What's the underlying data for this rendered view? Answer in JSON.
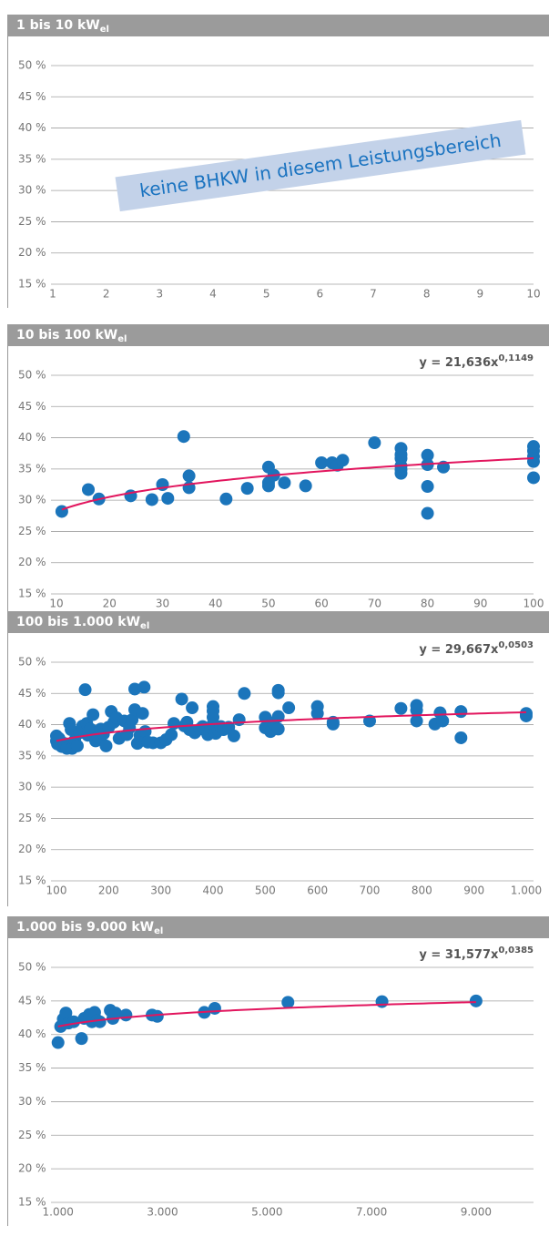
{
  "chart_data": [
    {
      "type": "scatter",
      "title": "1 bis 10 kW",
      "title_sub": "el",
      "annotation": "keine BHKW in diesem Leistungsbereich",
      "xlim": [
        1,
        10
      ],
      "xticks": [
        1,
        2,
        3,
        4,
        5,
        6,
        7,
        8,
        9,
        10
      ],
      "ylim": [
        15,
        50
      ],
      "yticks": [
        {
          "value": 15,
          "label": "15 %"
        },
        {
          "value": 20,
          "label": "20 %"
        },
        {
          "value": 25,
          "label": "25 %"
        },
        {
          "value": 30,
          "label": "30 %"
        },
        {
          "value": 35,
          "label": "35 %"
        },
        {
          "value": 40,
          "label": "40 %"
        },
        {
          "value": 45,
          "label": "45 %"
        },
        {
          "value": 50,
          "label": "50 %"
        }
      ],
      "grid": true
    },
    {
      "type": "scatter",
      "title": "10 bis 100 kW",
      "title_sub": "el",
      "color": "#1b75bb",
      "trendline": {
        "text": "y = ",
        "coef": {
          "value": 21.636,
          "label": "21,636"
        },
        "var": "x",
        "exp": {
          "value": 0.1149,
          "label": "0,1149"
        },
        "color": "#e2165e"
      },
      "xlim": [
        9.3,
        100
      ],
      "xticks": [
        10,
        20,
        30,
        40,
        50,
        60,
        70,
        80,
        90,
        100
      ],
      "ylim": [
        15,
        50
      ],
      "yticks": [
        {
          "value": 15,
          "label": "15 %"
        },
        {
          "value": 20,
          "label": "20 %"
        },
        {
          "value": 25,
          "label": "25 %"
        },
        {
          "value": 30,
          "label": "30 %"
        },
        {
          "value": 35,
          "label": "35 %"
        },
        {
          "value": 40,
          "label": "40 %"
        },
        {
          "value": 45,
          "label": "45 %"
        },
        {
          "value": 50,
          "label": "50 %"
        }
      ],
      "grid": true,
      "x": [
        11,
        16,
        18,
        24,
        28,
        30,
        31,
        34,
        35,
        35,
        42,
        46,
        50,
        50,
        50,
        51,
        53,
        57,
        60,
        62,
        63,
        64,
        70,
        75,
        75,
        75,
        75,
        75,
        75,
        80,
        80,
        80,
        80,
        83,
        100,
        100,
        100,
        100,
        100
      ],
      "values": [
        28.2,
        31.7,
        30.2,
        30.7,
        30.1,
        32.5,
        30.3,
        40.2,
        32,
        33.9,
        30.2,
        31.9,
        32.3,
        32.8,
        35.3,
        34,
        32.8,
        32.3,
        36,
        36,
        35.6,
        36.4,
        39.2,
        34.3,
        34.9,
        35.5,
        36.7,
        37.3,
        38.3,
        37.2,
        35.7,
        32.2,
        27.9,
        35.3,
        33.6,
        36.2,
        37,
        37.9,
        38.6
      ]
    },
    {
      "type": "scatter",
      "title": "100 bis 1.000 kW",
      "title_sub": "el",
      "color": "#1b75bb",
      "trendline": {
        "text": "y = ",
        "coef": {
          "value": 29.667,
          "label": "29,667"
        },
        "var": "x",
        "exp": {
          "value": 0.0503,
          "label": "0,0503"
        },
        "color": "#e2165e"
      },
      "xlim": [
        93,
        1014
      ],
      "xticks": [
        100,
        200,
        300,
        400,
        500,
        600,
        700,
        800,
        900,
        {
          "value": 1000,
          "label": "1.000"
        }
      ],
      "ylim": [
        15,
        50
      ],
      "yticks": [
        {
          "value": 15,
          "label": "15 %"
        },
        {
          "value": 20,
          "label": "20 %"
        },
        {
          "value": 25,
          "label": "25 %"
        },
        {
          "value": 30,
          "label": "30 %"
        },
        {
          "value": 35,
          "label": "35 %"
        },
        {
          "value": 40,
          "label": "40 %"
        },
        {
          "value": 45,
          "label": "45 %"
        },
        {
          "value": 50,
          "label": "50 %"
        }
      ],
      "grid": true,
      "x": [
        100,
        100,
        102,
        105,
        110,
        115,
        120,
        125,
        128,
        130,
        135,
        140,
        145,
        150,
        155,
        158,
        160,
        165,
        170,
        175,
        180,
        185,
        190,
        195,
        200,
        205,
        210,
        215,
        220,
        230,
        235,
        240,
        245,
        250,
        250,
        255,
        260,
        265,
        268,
        270,
        275,
        285,
        300,
        310,
        320,
        325,
        340,
        345,
        350,
        355,
        360,
        365,
        375,
        380,
        390,
        395,
        400,
        400,
        400,
        400,
        405,
        410,
        415,
        420,
        430,
        440,
        450,
        460,
        500,
        500,
        510,
        515,
        525,
        525,
        525,
        525,
        545,
        600,
        600,
        630,
        630,
        700,
        760,
        790,
        790,
        790,
        825,
        835,
        840,
        875,
        875,
        1000,
        1000
      ],
      "values": [
        37.4,
        38.2,
        36.9,
        37.8,
        36.5,
        37,
        36.2,
        40.2,
        39.2,
        36.2,
        37.5,
        36.6,
        38.7,
        39.8,
        45.6,
        40.2,
        38.3,
        39.3,
        41.6,
        37.4,
        38,
        39.3,
        38.5,
        36.6,
        39.6,
        42.1,
        40.4,
        41.1,
        37.8,
        40.6,
        38.4,
        39.5,
        40.8,
        45.7,
        42.4,
        37,
        38.3,
        41.8,
        46,
        38.9,
        37.2,
        37.1,
        37.1,
        37.6,
        38.4,
        40.2,
        44.1,
        39.8,
        40.4,
        39.2,
        42.7,
        38.7,
        39.3,
        39.7,
        38.4,
        39.6,
        42.9,
        42.2,
        41.2,
        40.1,
        38.6,
        39.1,
        39.7,
        39.2,
        39.6,
        38.2,
        40.8,
        45,
        41.2,
        39.5,
        38.9,
        40.3,
        45.5,
        45.1,
        41.3,
        39.3,
        42.7,
        42.9,
        41.8,
        40.4,
        40.1,
        40.6,
        42.6,
        43.1,
        42.3,
        40.6,
        40.1,
        41.9,
        40.6,
        42.1,
        37.9,
        41.8,
        41.4
      ]
    },
    {
      "type": "scatter",
      "title": "1.000 bis 9.000 kW",
      "title_sub": "el",
      "color": "#1b75bb",
      "trendline": {
        "text": "y = ",
        "coef": {
          "value": 31.577,
          "label": "31,577"
        },
        "var": "x",
        "exp": {
          "value": 0.0385,
          "label": "0,0385"
        },
        "color": "#e2165e"
      },
      "xlim": [
        900,
        10100
      ],
      "xticks": [
        {
          "value": 1000,
          "label": "1.000"
        },
        {
          "value": 3000,
          "label": "3.000"
        },
        {
          "value": 5000,
          "label": "5.000"
        },
        {
          "value": 7000,
          "label": "7.000"
        },
        {
          "value": 9000,
          "label": "9.000"
        }
      ],
      "ylim": [
        15,
        50
      ],
      "yticks": [
        {
          "value": 15,
          "label": "15 %"
        },
        {
          "value": 20,
          "label": "20 %"
        },
        {
          "value": 25,
          "label": "25 %"
        },
        {
          "value": 30,
          "label": "30 %"
        },
        {
          "value": 35,
          "label": "35 %"
        },
        {
          "value": 40,
          "label": "40 %"
        },
        {
          "value": 45,
          "label": "45 %"
        },
        {
          "value": 50,
          "label": "50 %"
        }
      ],
      "grid": true,
      "x": [
        1000,
        1050,
        1100,
        1150,
        1200,
        1300,
        1450,
        1500,
        1600,
        1650,
        1700,
        1750,
        1800,
        2000,
        2050,
        2100,
        2300,
        2800,
        2900,
        3800,
        4000,
        5400,
        7200,
        9000
      ],
      "values": [
        38.8,
        41.2,
        42.3,
        43.2,
        41.7,
        41.9,
        39.4,
        42.4,
        43,
        41.9,
        43.3,
        42.1,
        41.9,
        43.6,
        42.4,
        43.2,
        42.9,
        42.9,
        42.7,
        43.3,
        43.9,
        44.8,
        44.9,
        45
      ]
    }
  ]
}
